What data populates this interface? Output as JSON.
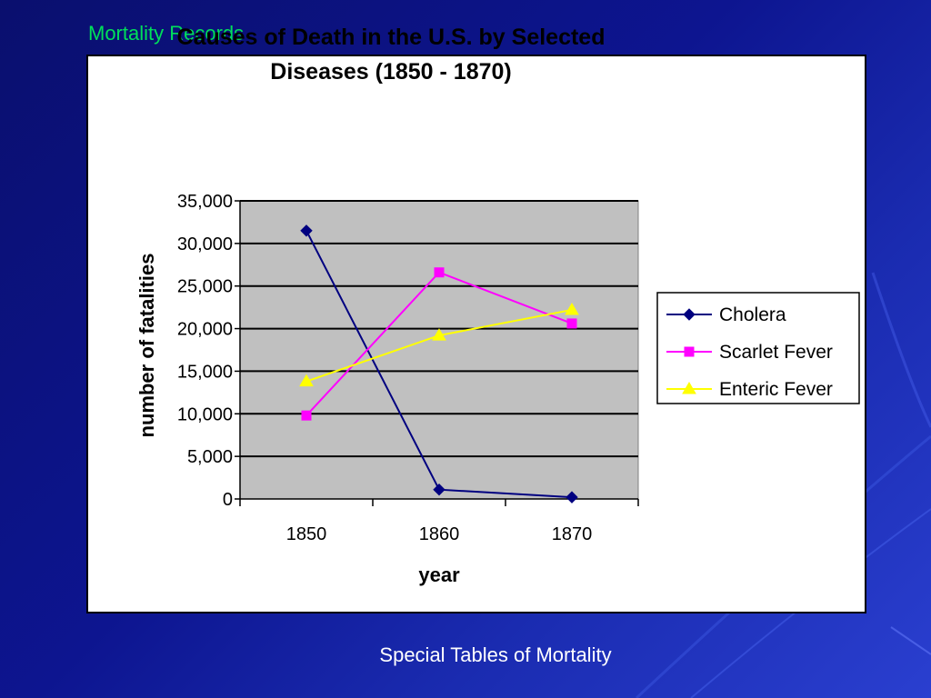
{
  "slide": {
    "title": "Mortality Records",
    "footer": "Special Tables of Mortality"
  },
  "colors": {
    "background": "#0d1590",
    "slide_title": "#00e05a",
    "plot_area": "#c0c0c0"
  },
  "chart_data": {
    "type": "line",
    "title": "Causes of Death in the U.S. by Selected Diseases (1850 - 1870)",
    "title_lines": [
      "Causes of Death in the U.S. by Selected",
      "Diseases (1850 - 1870)"
    ],
    "xlabel": "year",
    "ylabel": "number of fatalities",
    "categories": [
      "1850",
      "1860",
      "1870"
    ],
    "ylim": [
      0,
      35000
    ],
    "yticks": [
      0,
      5000,
      10000,
      15000,
      20000,
      25000,
      30000,
      35000
    ],
    "ytick_labels": [
      "0",
      "5,000",
      "10,000",
      "15,000",
      "20,000",
      "25,000",
      "30,000",
      "35,000"
    ],
    "grid": true,
    "legend_position": "right",
    "series": [
      {
        "name": "Cholera",
        "values": [
          31500,
          1100,
          200
        ],
        "color": "#000080",
        "marker": "diamond"
      },
      {
        "name": "Scarlet Fever",
        "values": [
          9800,
          26600,
          20600
        ],
        "color": "#ff00ff",
        "marker": "square"
      },
      {
        "name": "Enteric Fever",
        "values": [
          13800,
          19200,
          22200
        ],
        "color": "#ffff00",
        "marker": "triangle"
      }
    ]
  }
}
